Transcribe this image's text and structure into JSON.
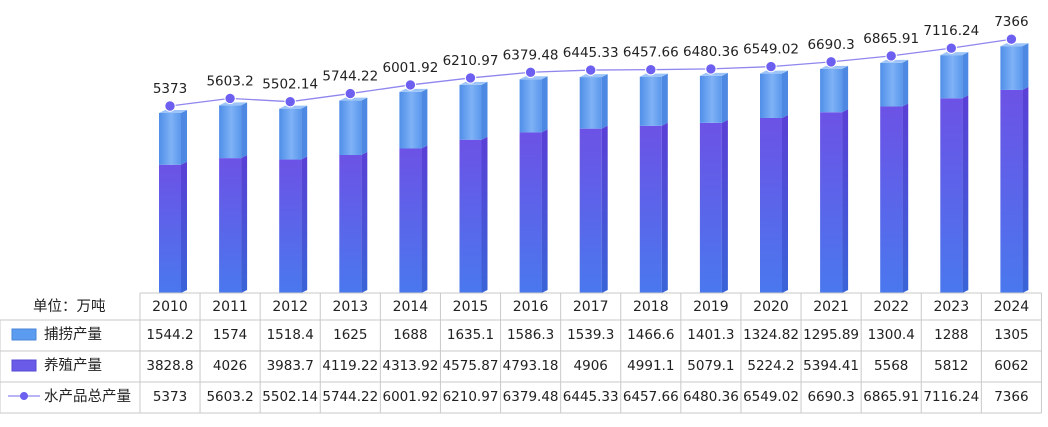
{
  "chart_data": {
    "type": "bar",
    "unit_label": "单位：万吨",
    "categories": [
      "2010",
      "2011",
      "2012",
      "2013",
      "2014",
      "2015",
      "2016",
      "2017",
      "2018",
      "2019",
      "2020",
      "2021",
      "2022",
      "2023",
      "2024"
    ],
    "series": [
      {
        "name": "捕捞产量",
        "kind": "stacked-bar",
        "color": "#5b9bf0",
        "values": [
          1544.2,
          1574,
          1518.4,
          1625,
          1688,
          1635.1,
          1586.3,
          1539.3,
          1466.6,
          1401.3,
          1324.82,
          1295.89,
          1300.4,
          1288,
          1305
        ]
      },
      {
        "name": "养殖产量",
        "kind": "stacked-bar",
        "color": "#6a5ce8",
        "values": [
          3828.8,
          4026,
          3983.7,
          4119.22,
          4313.92,
          4575.87,
          4793.18,
          4906,
          4991.1,
          5079.1,
          5224.2,
          5394.41,
          5568,
          5812,
          6062
        ]
      },
      {
        "name": "水产品总产量",
        "kind": "line",
        "color": "#7b6cf0",
        "values": [
          5373,
          5603.2,
          5502.14,
          5744.22,
          6001.92,
          6210.97,
          6379.48,
          6445.33,
          6457.66,
          6480.36,
          6549.02,
          6690.3,
          6865.91,
          7116.24,
          7366
        ]
      }
    ],
    "line_labels": [
      "5373",
      "5603.2",
      "5502.14",
      "5744.22",
      "6001.92",
      "6210.97",
      "6379.48",
      "6445.33",
      "6457.66",
      "6480.36",
      "6549.02",
      "6690.3",
      "6865.91",
      "7116.24",
      "7366"
    ],
    "table": {
      "rows": [
        [
          "1544.2",
          "1574",
          "1518.4",
          "1625",
          "1688",
          "1635.1",
          "1586.3",
          "1539.3",
          "1466.6",
          "1401.3",
          "1324.82",
          "1295.89",
          "1300.4",
          "1288",
          "1305"
        ],
        [
          "3828.8",
          "4026",
          "3983.7",
          "4119.22",
          "4313.92",
          "4575.87",
          "4793.18",
          "4906",
          "4991.1",
          "5079.1",
          "5224.2",
          "5394.41",
          "5568",
          "5812",
          "6062"
        ],
        [
          "5373",
          "5603.2",
          "5502.14",
          "5744.22",
          "6001.92",
          "6210.97",
          "6379.48",
          "6445.33",
          "6457.66",
          "6480.36",
          "6549.02",
          "6690.3",
          "6865.91",
          "7116.24",
          "7366"
        ]
      ]
    },
    "grid": false,
    "legend": "data-table"
  }
}
